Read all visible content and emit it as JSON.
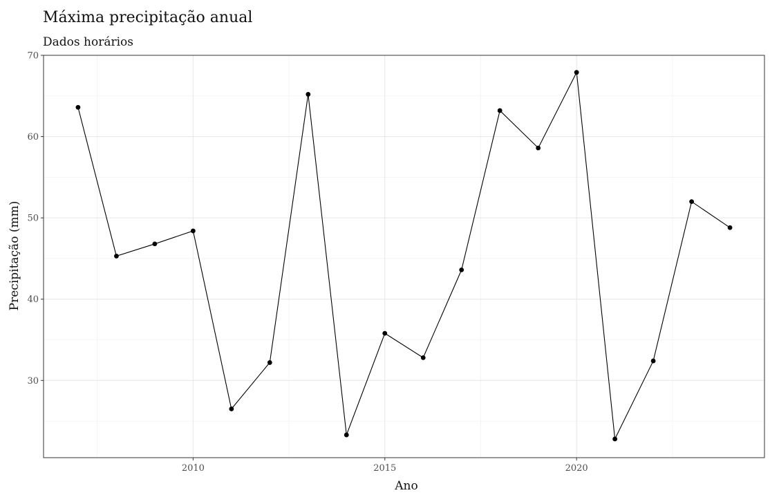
{
  "chart_data": {
    "type": "line",
    "title": "Máxima precipitação anual",
    "subtitle": "Dados horários",
    "xlabel": "Ano",
    "ylabel": "Precipitação (mm)",
    "x": [
      2007,
      2008,
      2009,
      2010,
      2011,
      2012,
      2013,
      2014,
      2015,
      2016,
      2017,
      2018,
      2019,
      2020,
      2021,
      2022,
      2023,
      2024
    ],
    "series": [
      {
        "values": [
          63.6,
          45.3,
          46.8,
          48.4,
          26.5,
          32.2,
          65.2,
          23.3,
          35.8,
          32.8,
          43.6,
          63.2,
          58.6,
          67.9,
          22.8,
          32.4,
          52.0,
          48.8
        ]
      }
    ],
    "xlim": [
      2006.1,
      2024.9
    ],
    "ylim": [
      20.5,
      70
    ],
    "x_ticks": [
      2010,
      2015,
      2020
    ],
    "y_ticks": [
      30,
      40,
      50,
      60,
      70
    ],
    "grid": true,
    "legend": "none",
    "colors": {
      "line": "#000000",
      "points": "#000000",
      "grid": "#e6e6e6"
    }
  }
}
